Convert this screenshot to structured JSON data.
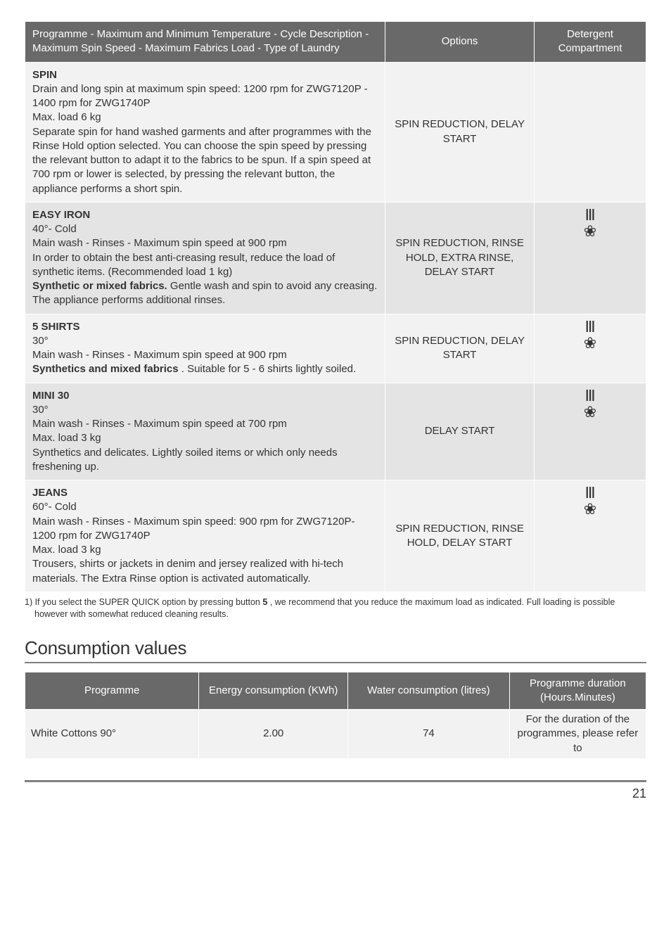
{
  "main_table": {
    "headers": {
      "col1": "Programme - Maximum and Minimum Temperature - Cycle Description - Maximum Spin Speed - Maximum Fabrics Load - Type of Laundry",
      "col2": "Options",
      "col3": "Detergent Compartment"
    },
    "rows": [
      {
        "name": "SPIN",
        "desc_lines": [
          "Drain and long spin at maximum spin speed: 1200 rpm for ZWG7120P - 1400 rpm for ZWG1740P",
          "Max. load 6 kg",
          "Separate spin for hand washed garments and after programmes with the Rinse Hold option selected. You can choose the spin speed by pressing the relevant button to adapt it to the fabrics to be spun. If a spin speed at 700 rpm or lower is selected, by pressing the relevant button, the appliance performs a short spin."
        ],
        "options": "SPIN REDUCTION, DELAY START",
        "detergent_icons": ""
      },
      {
        "name": "EASY IRON",
        "desc_lines": [
          "40°- Cold",
          "Main wash - Rinses - Maximum spin speed at 900 rpm",
          "In order to obtain the best anti-creasing result, reduce the load of synthetic items. (Recommended load 1 kg)"
        ],
        "desc_bold_lead": "Synthetic or mixed fabrics.",
        "desc_after_bold": " Gentle wash and spin to avoid any creasing. The appliance performs additional rinses.",
        "options": "SPIN REDUCTION, RINSE HOLD, EXTRA RINSE, DELAY START",
        "detergent_icons": "Ⅲ\n❀"
      },
      {
        "name": "5 SHIRTS",
        "desc_lines": [
          "30°",
          "Main wash - Rinses - Maximum spin speed at 900 rpm"
        ],
        "desc_bold_lead": "Synthetics and mixed fabrics",
        "desc_after_bold": " . Suitable for 5 - 6 shirts lightly soiled.",
        "options": "SPIN REDUCTION, DELAY START",
        "detergent_icons": "Ⅲ\n❀"
      },
      {
        "name": "MINI 30",
        "desc_lines": [
          "30°",
          "Main wash - Rinses - Maximum spin speed at 700 rpm",
          "Max. load 3 kg",
          "Synthetics and delicates. Lightly soiled items or which only needs freshening up."
        ],
        "options": "DELAY START",
        "detergent_icons": "Ⅲ\n❀"
      },
      {
        "name": "JEANS",
        "desc_lines": [
          "60°- Cold",
          "Main wash - Rinses - Maximum spin speed: 900 rpm for ZWG7120P- 1200 rpm for ZWG1740P",
          "Max. load 3 kg",
          "Trousers, shirts or jackets in denim and jersey realized with hi-tech materials. The Extra Rinse option is activated automatically."
        ],
        "options": "SPIN REDUCTION, RINSE HOLD, DELAY START",
        "detergent_icons": "Ⅲ\n❀"
      }
    ]
  },
  "footnote": {
    "prefix": "1) If you select the SUPER QUICK option by pressing button ",
    "bold": "5",
    "suffix": " , we recommend that you reduce the maximum load as indicated. Full loading is possible however with somewhat reduced cleaning results."
  },
  "consumption": {
    "heading": "Consumption values",
    "headers": {
      "c1": "Programme",
      "c2": "Energy consumption (KWh)",
      "c3": "Water consumption (litres)",
      "c4": "Programme duration (Hours.Minutes)"
    },
    "row": {
      "programme": "White Cottons 90°",
      "energy": "2.00",
      "water": "74",
      "duration": "For the duration of the programmes, please refer to"
    }
  },
  "page_number": "21"
}
